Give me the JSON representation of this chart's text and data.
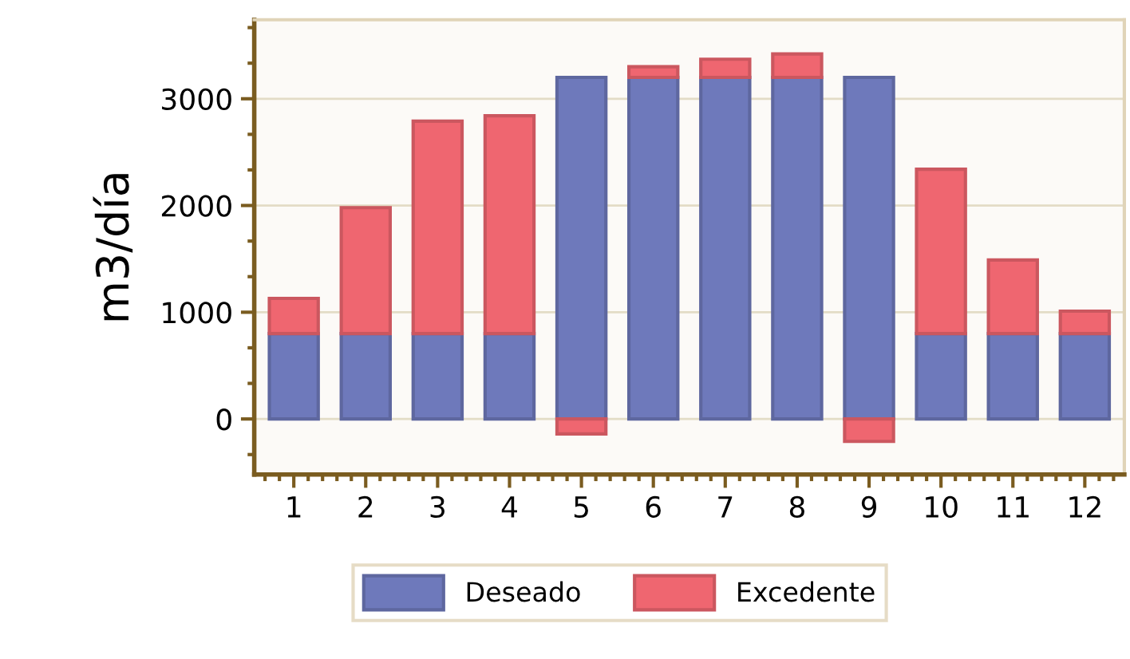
{
  "chart_data": {
    "type": "bar",
    "stacked": true,
    "ylabel": "m3/día",
    "categories": [
      "1",
      "2",
      "3",
      "4",
      "5",
      "6",
      "7",
      "8",
      "9",
      "10",
      "11",
      "12"
    ],
    "series": [
      {
        "name": "Deseado",
        "color": "#6e79bb",
        "values": [
          800,
          800,
          800,
          800,
          3200,
          3200,
          3200,
          3200,
          3200,
          800,
          800,
          800
        ]
      },
      {
        "name": "Excedente",
        "color": "#ef6670",
        "values": [
          330,
          1180,
          1990,
          2040,
          -140,
          100,
          170,
          220,
          -210,
          1540,
          690,
          210
        ]
      }
    ],
    "ylim": [
      -520,
      3740
    ],
    "yticks": [
      0,
      1000,
      2000,
      3000
    ],
    "grid": "y",
    "legend": "bottom"
  }
}
